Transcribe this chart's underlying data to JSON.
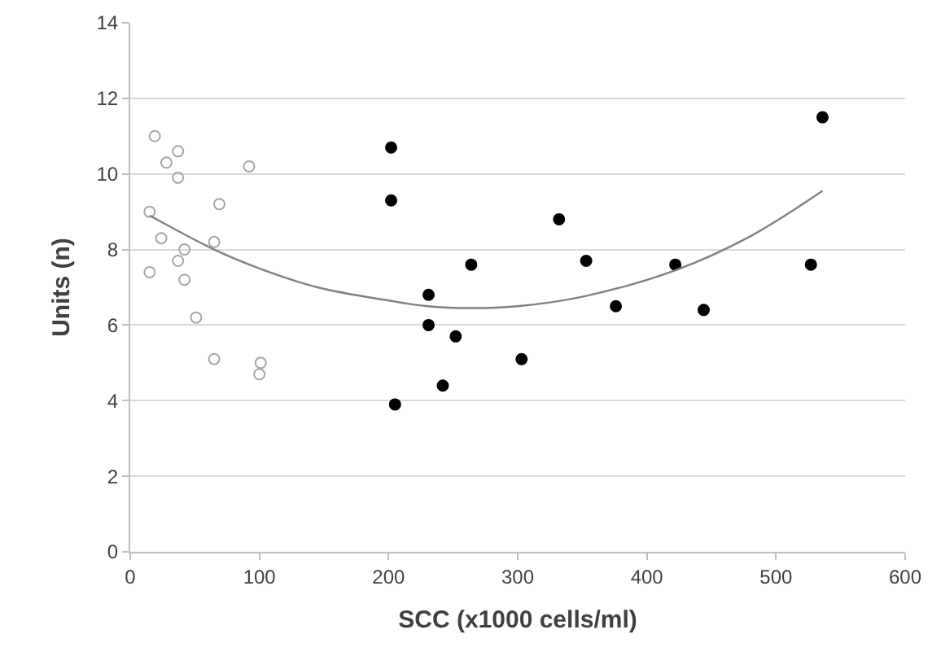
{
  "chart_data": {
    "type": "scatter",
    "xlabel": "SCC (x1000 cells/ml)",
    "ylabel": "Units (n)",
    "xlim": [
      0,
      600
    ],
    "xticks": [
      0,
      100,
      200,
      300,
      400,
      500,
      600
    ],
    "ylim": [
      0,
      14
    ],
    "yticks": [
      0,
      2,
      4,
      6,
      8,
      10,
      12,
      14
    ],
    "grid": "y",
    "series": [
      {
        "color": "#a6a6a6",
        "marker": "circle-open",
        "x": [
          19,
          37,
          28,
          37,
          92,
          15,
          69,
          24,
          42,
          65,
          15,
          37,
          42,
          51,
          65,
          101,
          100
        ],
        "values": [
          11.0,
          10.6,
          10.3,
          9.9,
          10.2,
          9.0,
          9.2,
          8.3,
          8.0,
          8.2,
          7.4,
          7.7,
          7.2,
          6.2,
          5.1,
          5.0,
          4.7
        ]
      },
      {
        "color": "#000000",
        "marker": "circle",
        "x": [
          202,
          202,
          332,
          353,
          264,
          231,
          231,
          252,
          303,
          242,
          205,
          536,
          422,
          527,
          376,
          444
        ],
        "values": [
          10.7,
          9.3,
          8.8,
          7.7,
          7.6,
          6.8,
          6.0,
          5.7,
          5.1,
          4.4,
          3.9,
          11.5,
          7.6,
          7.6,
          6.5,
          6.4
        ]
      },
      {
        "type": "line",
        "color": "#808080",
        "marker": "none",
        "x": [
          15,
          65,
          100,
          145,
          200,
          230,
          264,
          300,
          350,
          422,
          480,
          536
        ],
        "values": [
          8.9,
          8.0,
          7.5,
          7.0,
          6.65,
          6.5,
          6.45,
          6.5,
          6.75,
          7.45,
          8.35,
          9.55
        ]
      }
    ]
  }
}
